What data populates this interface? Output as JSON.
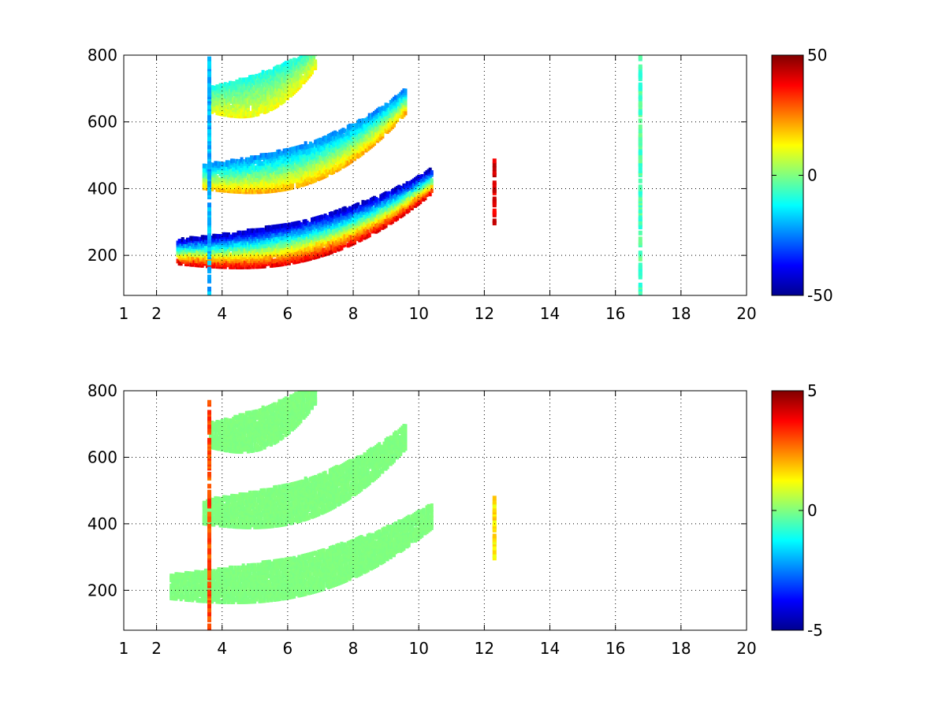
{
  "chart_data": [
    {
      "type": "heatmap",
      "title": "",
      "xlabel": "",
      "ylabel": "",
      "xlim": [
        1,
        20
      ],
      "ylim": [
        80,
        800
      ],
      "x_ticks": [
        1,
        2,
        4,
        6,
        8,
        10,
        12,
        14,
        16,
        18,
        20
      ],
      "x_tick_labels": [
        "1",
        "2",
        "4",
        "6",
        "8",
        "10",
        "12",
        "14",
        "16",
        "18",
        "20"
      ],
      "y_ticks": [
        200,
        400,
        600,
        800
      ],
      "y_tick_labels": [
        "200",
        "400",
        "600",
        "800"
      ],
      "grid": true,
      "colormap": "jet",
      "clim": [
        -50,
        50
      ],
      "colorbar_ticks": [
        -50,
        0,
        50
      ],
      "colorbar_tick_labels": [
        "-50",
        "0",
        "50"
      ],
      "bands": [
        {
          "x_start": 2.6,
          "x_end": 10.4,
          "y_start": 205,
          "y_end": 420,
          "value_low": 40,
          "value_high": -45
        },
        {
          "x_start": 3.4,
          "x_end": 9.6,
          "y_start": 430,
          "y_end": 660,
          "value_low": 20,
          "value_high": -25
        },
        {
          "x_start": 3.6,
          "x_end": 6.8,
          "y_start": 660,
          "y_end": 790,
          "value_low": 12,
          "value_high": -10
        }
      ],
      "vertical_stripes": [
        {
          "x": 12.25,
          "y_min": 290,
          "y_max": 480,
          "value": 40
        },
        {
          "x": 16.7,
          "y_min": 80,
          "y_max": 800,
          "value": -5
        },
        {
          "x": 3.55,
          "y_min": 80,
          "y_max": 800,
          "value": -20
        }
      ]
    },
    {
      "type": "heatmap",
      "title": "",
      "xlabel": "",
      "ylabel": "",
      "xlim": [
        1,
        20
      ],
      "ylim": [
        80,
        800
      ],
      "x_ticks": [
        1,
        2,
        4,
        6,
        8,
        10,
        12,
        14,
        16,
        18,
        20
      ],
      "x_tick_labels": [
        "1",
        "2",
        "4",
        "6",
        "8",
        "10",
        "12",
        "14",
        "16",
        "18",
        "20"
      ],
      "y_ticks": [
        200,
        400,
        600,
        800
      ],
      "y_tick_labels": [
        "200",
        "400",
        "600",
        "800"
      ],
      "grid": true,
      "colormap": "jet",
      "clim": [
        -5,
        5
      ],
      "colorbar_ticks": [
        -5,
        0,
        5
      ],
      "colorbar_tick_labels": [
        "-5",
        "0",
        "5"
      ],
      "bands": [
        {
          "x_start": 2.4,
          "x_end": 10.4,
          "y_start": 205,
          "y_end": 420,
          "value_low": 0,
          "value_high": 0
        },
        {
          "x_start": 3.4,
          "x_end": 9.6,
          "y_start": 430,
          "y_end": 660,
          "value_low": 0,
          "value_high": 0
        },
        {
          "x_start": 3.6,
          "x_end": 6.8,
          "y_start": 660,
          "y_end": 790,
          "value_low": 0,
          "value_high": 0
        }
      ],
      "vertical_stripes": [
        {
          "x": 12.25,
          "y_min": 290,
          "y_max": 480,
          "value": 1.5
        },
        {
          "x": 3.55,
          "y_min": 80,
          "y_max": 760,
          "value": 3
        }
      ]
    }
  ]
}
